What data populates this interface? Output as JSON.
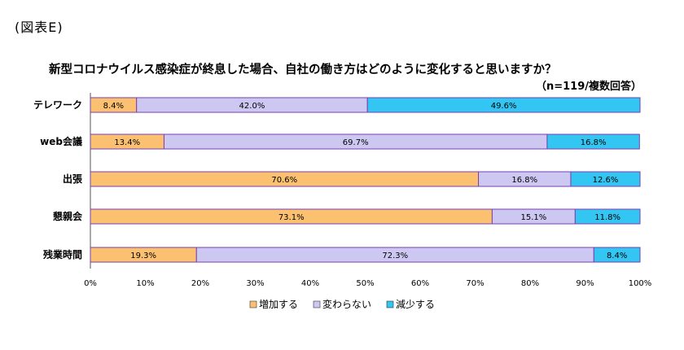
{
  "figure_label": "(図表E)",
  "chart_data": {
    "type": "bar",
    "orientation": "horizontal",
    "stacked": true,
    "title": "新型コロナウイルス感染症が終息した場合、自社の働き方はどのように変化すると思いますか？",
    "subtitle": "（n=119/複数回答）",
    "categories": [
      "テレワーク",
      "web会議",
      "出張",
      "懇親会",
      "残業時間"
    ],
    "series": [
      {
        "name": "増加する",
        "color": "#fbc070",
        "values": [
          8.4,
          13.4,
          70.6,
          73.1,
          19.3
        ]
      },
      {
        "name": "変わらない",
        "color": "#ccc8f2",
        "values": [
          42.0,
          69.7,
          16.8,
          15.1,
          72.3
        ]
      },
      {
        "name": "減少する",
        "color": "#33c6f2",
        "values": [
          49.6,
          16.8,
          12.6,
          11.8,
          8.4
        ]
      }
    ],
    "xlim": [
      0,
      100
    ],
    "xticks": [
      "0%",
      "10%",
      "20%",
      "30%",
      "40%",
      "50%",
      "60%",
      "70%",
      "80%",
      "90%",
      "100%"
    ],
    "grid": false,
    "legend_position": "bottom"
  }
}
